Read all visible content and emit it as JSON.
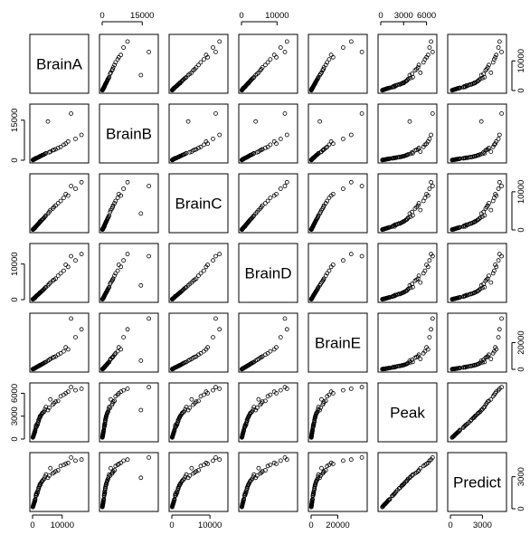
{
  "chart_data": {
    "type": "scatter",
    "title": "",
    "variables": [
      "BrainA",
      "BrainB",
      "BrainC",
      "BrainD",
      "BrainE",
      "Peak",
      "Predict"
    ],
    "ranges": {
      "BrainA": [
        0,
        18000
      ],
      "BrainB": [
        0,
        20000
      ],
      "BrainC": [
        0,
        14000
      ],
      "BrainD": [
        0,
        15000
      ],
      "BrainE": [
        0,
        40000
      ],
      "Peak": [
        0,
        7000
      ],
      "Predict": [
        0,
        5000
      ]
    },
    "axes": {
      "top": [
        {
          "variable": "BrainB",
          "ticks": [
            0,
            15000
          ],
          "labels": [
            "0",
            "15000"
          ]
        },
        {
          "variable": "BrainD",
          "ticks": [
            0,
            10000
          ],
          "labels": [
            "0",
            "10000"
          ]
        },
        {
          "variable": "Peak",
          "ticks": [
            0,
            3000,
            6000
          ],
          "labels": [
            "0",
            "3000",
            "6000"
          ]
        }
      ],
      "bottom": [
        {
          "variable": "BrainA",
          "ticks": [
            0,
            10000
          ],
          "labels": [
            "0",
            "10000"
          ]
        },
        {
          "variable": "BrainC",
          "ticks": [
            0,
            10000
          ],
          "labels": [
            "0",
            "10000"
          ]
        },
        {
          "variable": "BrainE",
          "ticks": [
            0,
            20000
          ],
          "labels": [
            "0",
            "20000"
          ]
        },
        {
          "variable": "Predict",
          "ticks": [
            0,
            3000
          ],
          "labels": [
            "0",
            "3000"
          ]
        }
      ],
      "left": [
        {
          "variable": "BrainB",
          "ticks": [
            0,
            15000
          ],
          "labels": [
            "0",
            "15000"
          ]
        },
        {
          "variable": "BrainD",
          "ticks": [
            0,
            10000
          ],
          "labels": [
            "0",
            "10000"
          ]
        },
        {
          "variable": "Peak",
          "ticks": [
            0,
            3000,
            6000
          ],
          "labels": [
            "0",
            "3000",
            "6000"
          ]
        }
      ],
      "right": [
        {
          "variable": "BrainA",
          "ticks": [
            0,
            10000
          ],
          "labels": [
            "0",
            "10000"
          ]
        },
        {
          "variable": "BrainC",
          "ticks": [
            0,
            10000
          ],
          "labels": [
            "0",
            "10000"
          ]
        },
        {
          "variable": "BrainE",
          "ticks": [
            0,
            20000
          ],
          "labels": [
            "0",
            "20000"
          ]
        },
        {
          "variable": "Predict",
          "ticks": [
            0,
            3000
          ],
          "labels": [
            "0",
            "3000"
          ]
        }
      ]
    },
    "points": {
      "BrainA": [
        1200,
        300,
        2500,
        800,
        4500,
        150,
        6000,
        2100,
        900,
        12000,
        3300,
        500,
        7800,
        1600,
        200,
        9500,
        2800,
        400,
        5200,
        1100,
        16500,
        3900,
        650,
        2300,
        10500,
        1400,
        350,
        6800,
        2600,
        750,
        14500,
        1900,
        4200,
        250,
        8600,
        3100,
        600,
        1700,
        11200,
        450,
        5600,
        2000,
        100,
        7200,
        1300,
        3600,
        850,
        13000,
        2400,
        550
      ],
      "BrainB": [
        800,
        250,
        1500,
        400,
        2600,
        100,
        3200,
        1200,
        600,
        7000,
        1900,
        300,
        4100,
        900,
        150,
        5000,
        1600,
        250,
        14500,
        700,
        9500,
        2200,
        450,
        1300,
        5800,
        850,
        200,
        3700,
        1500,
        500,
        8000,
        1100,
        2400,
        180,
        4600,
        1800,
        380,
        1000,
        6200,
        280,
        3000,
        1150,
        80,
        3900,
        750,
        2000,
        520,
        17500,
        1400,
        330
      ],
      "BrainC": [
        900,
        200,
        2200,
        500,
        3800,
        120,
        5200,
        1700,
        700,
        9000,
        2700,
        350,
        6400,
        1300,
        160,
        7600,
        2300,
        300,
        4300,
        880,
        12500,
        3200,
        520,
        1900,
        8400,
        1150,
        260,
        5600,
        2100,
        600,
        10800,
        1550,
        3500,
        190,
        7000,
        2600,
        450,
        1400,
        9400,
        330,
        4700,
        1650,
        90,
        6000,
        1050,
        2950,
        680,
        11500,
        2000,
        400
      ],
      "BrainD": [
        1000,
        220,
        2000,
        450,
        3500,
        130,
        4800,
        1600,
        650,
        9200,
        2500,
        320,
        5900,
        1250,
        170,
        7400,
        2150,
        280,
        4000,
        820,
        12800,
        3000,
        480,
        1750,
        8100,
        1080,
        240,
        5300,
        1950,
        560,
        11000,
        1450,
        3300,
        200,
        6700,
        2400,
        420,
        1300,
        9800,
        310,
        4400,
        1550,
        95,
        5600,
        980,
        2750,
        630,
        12200,
        1850,
        380
      ],
      "BrainE": [
        1500,
        300,
        3200,
        700,
        5500,
        200,
        7800,
        2500,
        1000,
        15000,
        4000,
        500,
        9600,
        1900,
        260,
        12000,
        3400,
        430,
        6500,
        1300,
        30000,
        4800,
        750,
        2800,
        13500,
        1700,
        380,
        8700,
        3100,
        900,
        24000,
        2300,
        5200,
        300,
        11000,
        3800,
        670,
        2000,
        16500,
        480,
        7100,
        2500,
        150,
        9200,
        1550,
        4400,
        1000,
        38000,
        2900,
        600
      ],
      "Peak": [
        1800,
        400,
        3000,
        900,
        4200,
        250,
        5200,
        2400,
        1200,
        6200,
        3400,
        650,
        4900,
        2000,
        320,
        5600,
        3100,
        550,
        3800,
        1500,
        6600,
        3600,
        850,
        2700,
        5800,
        1700,
        480,
        4500,
        2900,
        1000,
        6400,
        2200,
        3900,
        380,
        5000,
        3300,
        780,
        1900,
        6000,
        600,
        4100,
        2500,
        200,
        4700,
        1600,
        3500,
        1100,
        6800,
        2800,
        700
      ],
      "Predict": [
        1400,
        350,
        2300,
        700,
        3200,
        200,
        3800,
        1900,
        900,
        4300,
        2600,
        500,
        3500,
        1600,
        260,
        4000,
        2400,
        420,
        2900,
        1200,
        4600,
        2800,
        650,
        2100,
        4100,
        1350,
        380,
        3300,
        2250,
        800,
        4500,
        1750,
        3000,
        300,
        3600,
        2550,
        600,
        1500,
        4200,
        470,
        3100,
        1950,
        150,
        3400,
        1250,
        2700,
        850,
        4800,
        2200,
        550
      ]
    }
  }
}
